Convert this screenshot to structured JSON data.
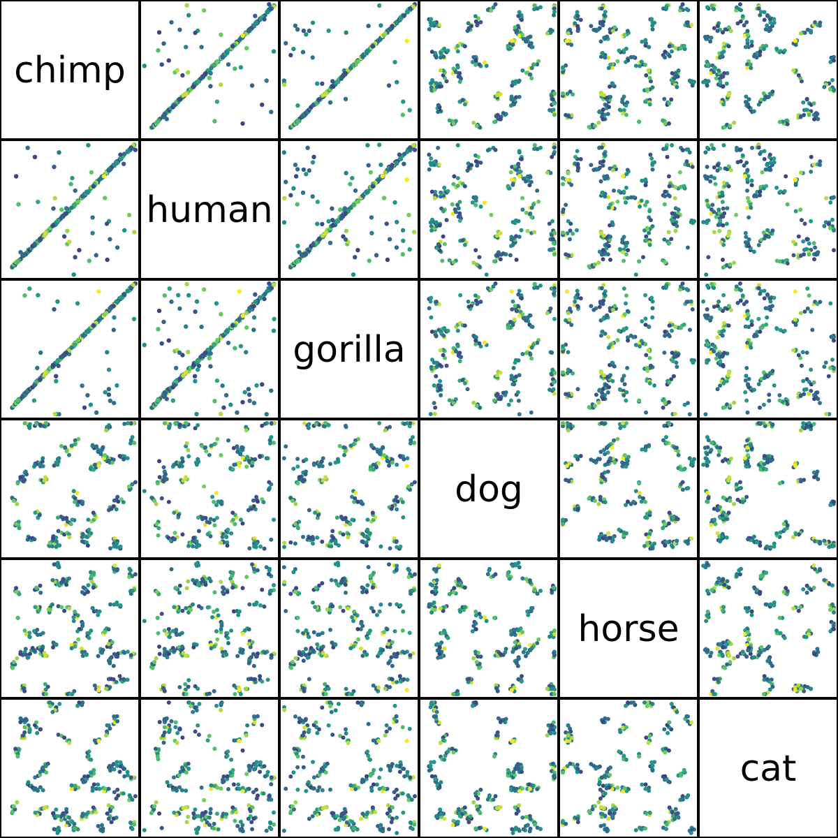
{
  "chart_data": {
    "type": "scatter",
    "variables": [
      "chimp",
      "human",
      "gorilla",
      "dog",
      "horse",
      "cat"
    ],
    "layout": "scatter-matrix",
    "diagonal": "variable-name",
    "axes_visible": false,
    "grid": false,
    "colormap": "viridis",
    "point_count_per_panel": 260,
    "correlated_pairs": [
      {
        "a": "chimp",
        "b": "human",
        "relation": "near-identity"
      },
      {
        "a": "chimp",
        "b": "gorilla",
        "relation": "near-identity"
      },
      {
        "a": "human",
        "b": "gorilla",
        "relation": "near-identity"
      }
    ],
    "uncorrelated_pairs_note": "all other pairs show scattered clustered trajectories"
  },
  "colors": {
    "viridis_low": "#440154",
    "viridis_mid_low": "#3b528b",
    "viridis_mid": "#21918c",
    "viridis_mid_high": "#5ec962",
    "viridis_high": "#fde725",
    "border": "#000000",
    "background": "#ffffff"
  }
}
